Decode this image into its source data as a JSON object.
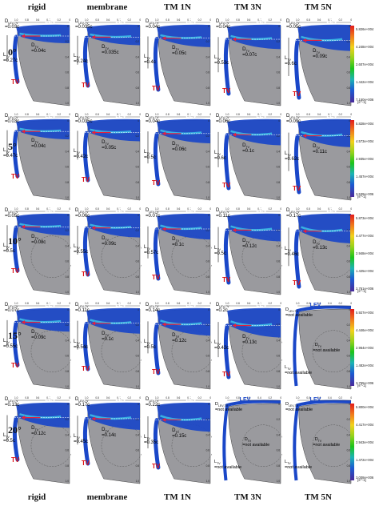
{
  "columns": [
    "rigid",
    "membrane",
    "TM 1N",
    "TM 3N",
    "TM 5N"
  ],
  "angles": [
    "0°",
    "5°",
    "10°",
    "15°",
    "20°"
  ],
  "labels": {
    "lev": "LEV",
    "tv": "TV",
    "d_lev_tv": "D",
    "d_lev_tv_sub": "LEV-TV",
    "d_tv": "D",
    "d_tv_sub": "TV",
    "l_tv": "L",
    "l_tv_sub": "TV",
    "axis_top": "2x/b",
    "axis_right": "x/c",
    "not_available": "=not available"
  },
  "rows": [
    {
      "angle": "0°",
      "panels": [
        {
          "d_lev_tv": "=0.03c",
          "d_tv": "=0.04c",
          "l_tv": "=0.27c"
        },
        {
          "d_lev_tv": "=0.035c",
          "d_tv": "=0.035c",
          "l_tv": "=0.24c"
        },
        {
          "d_lev_tv": "=0.04c",
          "d_tv": "=0.05c",
          "l_tv": "=0.4c"
        },
        {
          "d_lev_tv": "=0.04c",
          "d_tv": "=0.07c",
          "l_tv": "=0.53c"
        },
        {
          "d_lev_tv": "=0.05c",
          "d_tv": "=0.09c",
          "l_tv": "=0.6c"
        }
      ],
      "colorbar": [
        "5.826e+004",
        "4.248e+004",
        "2.607e+004",
        "1.442e+004",
        "7.150e+006"
      ]
    },
    {
      "angle": "5°",
      "panels": [
        {
          "d_lev_tv": "=0.03c",
          "d_tv": "=0.04c",
          "l_tv": "=0.47c"
        },
        {
          "d_lev_tv": "=0.035c",
          "d_tv": "=0.05c",
          "l_tv": "=0.42c"
        },
        {
          "d_lev_tv": "=0.04c",
          "d_tv": "=0.06c",
          "l_tv": "=0.5c"
        },
        {
          "d_lev_tv": "=0.06c",
          "d_tv": "=0.1c",
          "l_tv": "=0.6c"
        },
        {
          "d_lev_tv": "=0.09c",
          "d_tv": "=0.11c",
          "l_tv": "=0.62c"
        }
      ],
      "colorbar": [
        "5.828e+004",
        "4.573e+004",
        "2.935e+004",
        "1.457e+004",
        "3.539e+006"
      ]
    },
    {
      "angle": "10°",
      "panels": [
        {
          "d_lev_tv": "=0.05c",
          "d_tv": "=0.08c",
          "l_tv": "=0.5c"
        },
        {
          "d_lev_tv": "=0.06c",
          "d_tv": "=0.09c",
          "l_tv": "=0.55c"
        },
        {
          "d_lev_tv": "=0.07c",
          "d_tv": "=0.1c",
          "l_tv": "=0.57c"
        },
        {
          "d_lev_tv": "=0.11c",
          "d_tv": "=0.12c",
          "l_tv": "=0.5c"
        },
        {
          "d_lev_tv": "=0.17c",
          "d_tv": "=0.13c",
          "l_tv": "=0.46c"
        }
      ],
      "colorbar": [
        "5.873e+004",
        "4.477e+004",
        "2.948e+004",
        "1.425e+004",
        "2.761e+006"
      ]
    },
    {
      "angle": "15°",
      "panels": [
        {
          "d_lev_tv": "=0.07c",
          "d_tv": "=0.09c",
          "l_tv": "=0.55c"
        },
        {
          "d_lev_tv": "=0.11c",
          "d_tv": "=0.1c",
          "l_tv": "=0.54c"
        },
        {
          "d_lev_tv": "=0.14c",
          "d_tv": "=0.12c",
          "l_tv": "=0.5c"
        },
        {
          "d_lev_tv": "=0.2c",
          "d_tv": "=0.13c",
          "l_tv": "=0.42c"
        },
        {
          "na": true
        }
      ],
      "colorbar": [
        "5.927e+004",
        "4.446e+004",
        "2.964e+004",
        "1.482e+004",
        "3.755e+006"
      ]
    },
    {
      "angle": "20°",
      "panels": [
        {
          "d_lev_tv": "=0.13c",
          "d_tv": "=0.12c",
          "l_tv": "=0.5c"
        },
        {
          "d_lev_tv": "=0.17c",
          "d_tv": "=0.14c",
          "l_tv": "=0.45c"
        },
        {
          "d_lev_tv": "=0.22c",
          "d_tv": "=0.15c",
          "l_tv": "=0.35c"
        },
        {
          "na": true
        },
        {
          "na": true
        }
      ],
      "colorbar": [
        "5.800e+004",
        "4.417e+004",
        "2.943e+004",
        "1.472e+004",
        "3.008e+006"
      ]
    }
  ],
  "colorbar_unit": "[s^-1]",
  "axis_ticks_top": [
    "1.0",
    "0.8",
    "0.6",
    "0.4",
    "0.2",
    "0"
  ],
  "axis_ticks_right": [
    "0",
    "0.2",
    "0.4",
    "0.6",
    "0.8",
    "1.0"
  ],
  "colors": {
    "lev_blue": "#1a47c8",
    "lev_cyan": "#3cc3e8",
    "wing_gray": "#9a9a9e",
    "arrow_red": "#e8203a",
    "tv_red": "#e01010"
  }
}
